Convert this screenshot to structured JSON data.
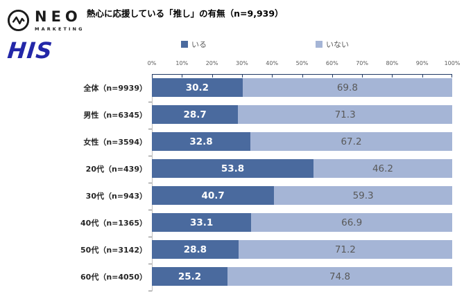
{
  "header": {
    "title": "熱心に応援している「推し」の有無（n=9,939）"
  },
  "logos": {
    "neo": {
      "name": "NEO",
      "sub": "MARKETING"
    },
    "his": {
      "name": "HIS"
    }
  },
  "chart_data": {
    "type": "bar",
    "orientation": "horizontal",
    "stacked": true,
    "title": "熱心に応援している「推し」の有無（n=9,939）",
    "categories": [
      "全体（n=9939）",
      "男性（n=6345）",
      "女性（n=3594）",
      "20代（n=439）",
      "30代（n=943）",
      "40代（n=1365）",
      "50代（n=3142）",
      "60代（n=4050）"
    ],
    "series": [
      {
        "name": "いる",
        "color": "#4a6a9e",
        "values": [
          30.2,
          28.7,
          32.8,
          53.8,
          40.7,
          33.1,
          28.8,
          25.2
        ]
      },
      {
        "name": "いない",
        "color": "#a5b5d6",
        "values": [
          69.8,
          71.3,
          67.2,
          46.2,
          59.3,
          66.9,
          71.2,
          74.8
        ]
      }
    ],
    "x_axis": {
      "min": 0,
      "max": 100,
      "ticks": [
        "0%",
        "10%",
        "20%",
        "30%",
        "40%",
        "50%",
        "60%",
        "70%",
        "80%",
        "90%",
        "100%"
      ]
    },
    "legend_position": "top",
    "grid": false
  },
  "colors": {
    "series_dark": "#4a6a9e",
    "series_light": "#a5b5d6",
    "axis_line": "#1f3864",
    "axis_text": "#595959",
    "value_text_light_seg": "#595959",
    "value_text_dark_seg": "#ffffff",
    "his_blue": "#2327a8",
    "neo_black": "#1b1b1b"
  }
}
